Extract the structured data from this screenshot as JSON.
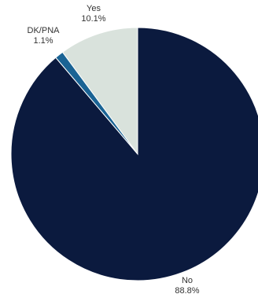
{
  "chart_data": {
    "type": "pie",
    "slices": [
      {
        "label": "No",
        "value": 88.8,
        "display": "88.8%",
        "color": "#0b1a3e"
      },
      {
        "label": "DK/PNA",
        "value": 1.1,
        "display": "1.1%",
        "color": "#1a6394"
      },
      {
        "label": "Yes",
        "value": 10.1,
        "display": "10.1%",
        "color": "#d9e2dc"
      }
    ],
    "start_angle_degrees": 0,
    "direction": "clockwise"
  }
}
